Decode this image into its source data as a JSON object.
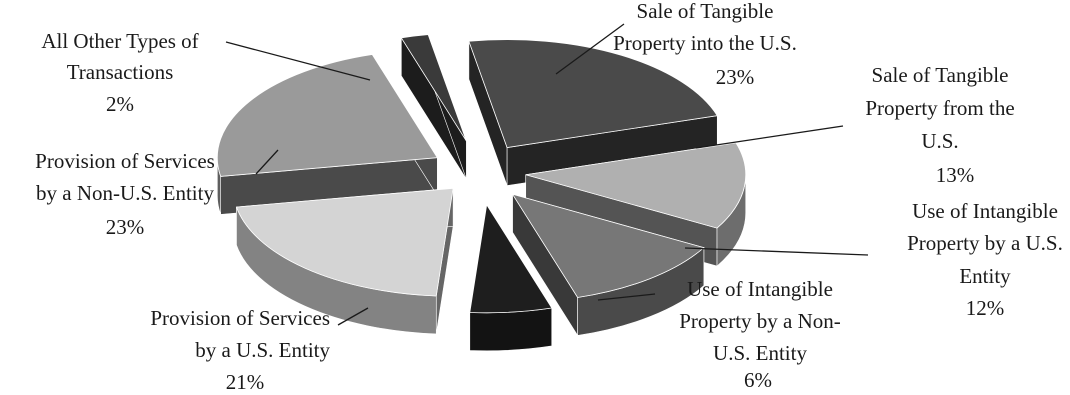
{
  "chart_data": {
    "type": "pie",
    "style": "3d-exploded",
    "slices": [
      {
        "label": [
          "Sale of Tangible",
          "Property into the U.S."
        ],
        "pct_label": "23%",
        "value": 23,
        "color": "#4a4a4a"
      },
      {
        "label": [
          "Sale of Tangible",
          "Property from the",
          "U.S."
        ],
        "pct_label": "13%",
        "value": 13,
        "color": "#b0b0b0"
      },
      {
        "label": [
          "Use of Intangible",
          "Property by a U.S.",
          "Entity"
        ],
        "pct_label": "12%",
        "value": 12,
        "color": "#777777"
      },
      {
        "label": [
          "Use of Intangible",
          "Property by a Non-",
          "U.S. Entity"
        ],
        "pct_label": "6%",
        "value": 6,
        "color": "#1e1e1e"
      },
      {
        "label": [
          "Provision of Services",
          "by a U.S. Entity"
        ],
        "pct_label": "21%",
        "value": 21,
        "color": "#d4d4d4"
      },
      {
        "label": [
          "Provision of Services",
          "by a Non-U.S. Entity"
        ],
        "pct_label": "23%",
        "value": 23,
        "color": "#9a9a9a"
      },
      {
        "label": [
          "All Other Types of",
          "Transactions"
        ],
        "pct_label": "2%",
        "value": 2,
        "color": "#3a3a3a"
      }
    ]
  }
}
